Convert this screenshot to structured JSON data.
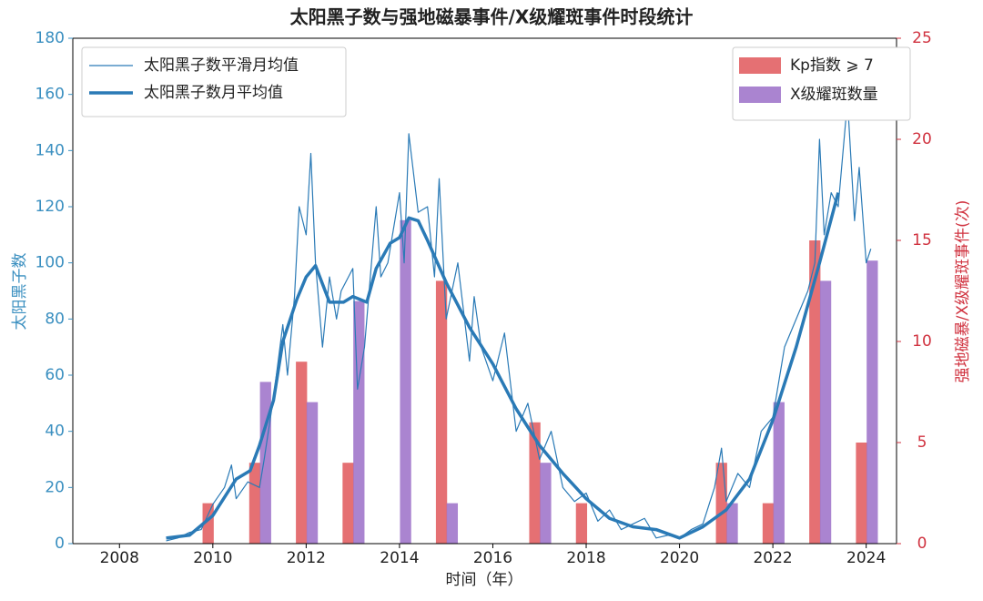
{
  "chart_data": {
    "type": "combo",
    "title": "太阳黑子数与强地磁暴事件/X级耀斑事件时段统计",
    "x_label": "时间（年）",
    "y_label": "太阳黑子数",
    "y2_label": "强地磁暴/X级耀斑事件(次)",
    "xlim": [
      2007,
      2024.65
    ],
    "xticks": [
      2008,
      2010,
      2012,
      2014,
      2016,
      2018,
      2020,
      2022,
      2024
    ],
    "ylim": [
      0,
      180
    ],
    "yticks": [
      0,
      20,
      40,
      60,
      80,
      100,
      120,
      140,
      160,
      180
    ],
    "y2lim": [
      0,
      25
    ],
    "y2ticks": [
      0,
      5,
      10,
      15,
      20,
      25
    ],
    "y_color": "#3a8fc0",
    "y2_color": "#d0323f",
    "series": [
      {
        "name": "太阳黑子数平滑月均值",
        "type": "line",
        "color": "#2a7ab6",
        "linewidth": 1.2,
        "legend": "upper left",
        "x": [
          2009.0,
          2009.25,
          2009.5,
          2009.75,
          2010.0,
          2010.25,
          2010.4,
          2010.5,
          2010.75,
          2011.0,
          2011.1,
          2011.3,
          2011.5,
          2011.6,
          2011.75,
          2011.85,
          2012.0,
          2012.1,
          2012.2,
          2012.35,
          2012.5,
          2012.65,
          2012.75,
          2013.0,
          2013.1,
          2013.25,
          2013.5,
          2013.6,
          2013.75,
          2014.0,
          2014.1,
          2014.2,
          2014.4,
          2014.6,
          2014.75,
          2014.85,
          2015.0,
          2015.25,
          2015.5,
          2015.6,
          2015.75,
          2016.0,
          2016.25,
          2016.5,
          2016.75,
          2017.0,
          2017.25,
          2017.5,
          2017.75,
          2018.0,
          2018.25,
          2018.5,
          2018.75,
          2019.0,
          2019.25,
          2019.5,
          2019.75,
          2020.0,
          2020.25,
          2020.5,
          2020.75,
          2020.9,
          2021.0,
          2021.25,
          2021.5,
          2021.75,
          2022.0,
          2022.25,
          2022.5,
          2022.75,
          2022.9,
          2023.0,
          2023.1,
          2023.25,
          2023.4,
          2023.6,
          2023.75,
          2023.85,
          2024.0,
          2024.1
        ],
        "values": [
          1,
          2,
          4,
          5,
          14,
          20,
          28,
          16,
          22,
          20,
          30,
          52,
          78,
          60,
          88,
          120,
          110,
          139,
          100,
          70,
          95,
          80,
          90,
          98,
          55,
          70,
          120,
          95,
          100,
          125,
          100,
          146,
          118,
          120,
          95,
          130,
          80,
          100,
          65,
          88,
          70,
          58,
          75,
          40,
          50,
          30,
          40,
          20,
          15,
          18,
          8,
          12,
          5,
          7,
          9,
          2,
          3,
          2,
          5,
          7,
          20,
          34,
          15,
          25,
          20,
          40,
          45,
          70,
          80,
          90,
          100,
          144,
          110,
          125,
          120,
          158,
          115,
          134,
          100,
          105
        ]
      },
      {
        "name": "太阳黑子数月平均值",
        "type": "line",
        "color": "#2a7ab6",
        "linewidth": 3.5,
        "legend": "upper left",
        "x": [
          2009.0,
          2009.5,
          2010.0,
          2010.5,
          2010.8,
          2011.0,
          2011.3,
          2011.5,
          2011.8,
          2012.0,
          2012.2,
          2012.5,
          2012.8,
          2013.0,
          2013.3,
          2013.5,
          2013.8,
          2014.0,
          2014.2,
          2014.4,
          2014.6,
          2015.0,
          2015.5,
          2016.0,
          2016.5,
          2017.0,
          2017.5,
          2018.0,
          2018.5,
          2019.0,
          2019.5,
          2020.0,
          2020.5,
          2021.0,
          2021.5,
          2022.0,
          2022.5,
          2023.0,
          2023.4
        ],
        "values": [
          2,
          3,
          10,
          23,
          26,
          35,
          51,
          72,
          87,
          95,
          99,
          86,
          86,
          88,
          86,
          98,
          107,
          109,
          116,
          115,
          108,
          93,
          77,
          64,
          48,
          35,
          25,
          16,
          9,
          6,
          5,
          2,
          6,
          12,
          23,
          44,
          70,
          100,
          125
        ]
      },
      {
        "name": "Kp指数 ⩾ 7",
        "type": "bar",
        "axis": "y2",
        "color": "#e0575a",
        "legend": "upper right",
        "x": [
          2010,
          2011,
          2012,
          2013,
          2014,
          2015,
          2017,
          2018,
          2021,
          2022,
          2023,
          2024
        ],
        "values": [
          2,
          4,
          9,
          4,
          null,
          13,
          6,
          2,
          4,
          2,
          15,
          5
        ]
      },
      {
        "name": "X级耀斑数量",
        "type": "bar",
        "axis": "y2",
        "color": "#9b6fc8",
        "legend": "upper right",
        "x": [
          2010,
          2011,
          2012,
          2013,
          2014,
          2015,
          2017,
          2018,
          2021,
          2022,
          2023,
          2024
        ],
        "values": [
          null,
          8,
          7,
          12,
          16,
          2,
          4,
          null,
          2,
          7,
          13,
          14
        ]
      }
    ]
  }
}
